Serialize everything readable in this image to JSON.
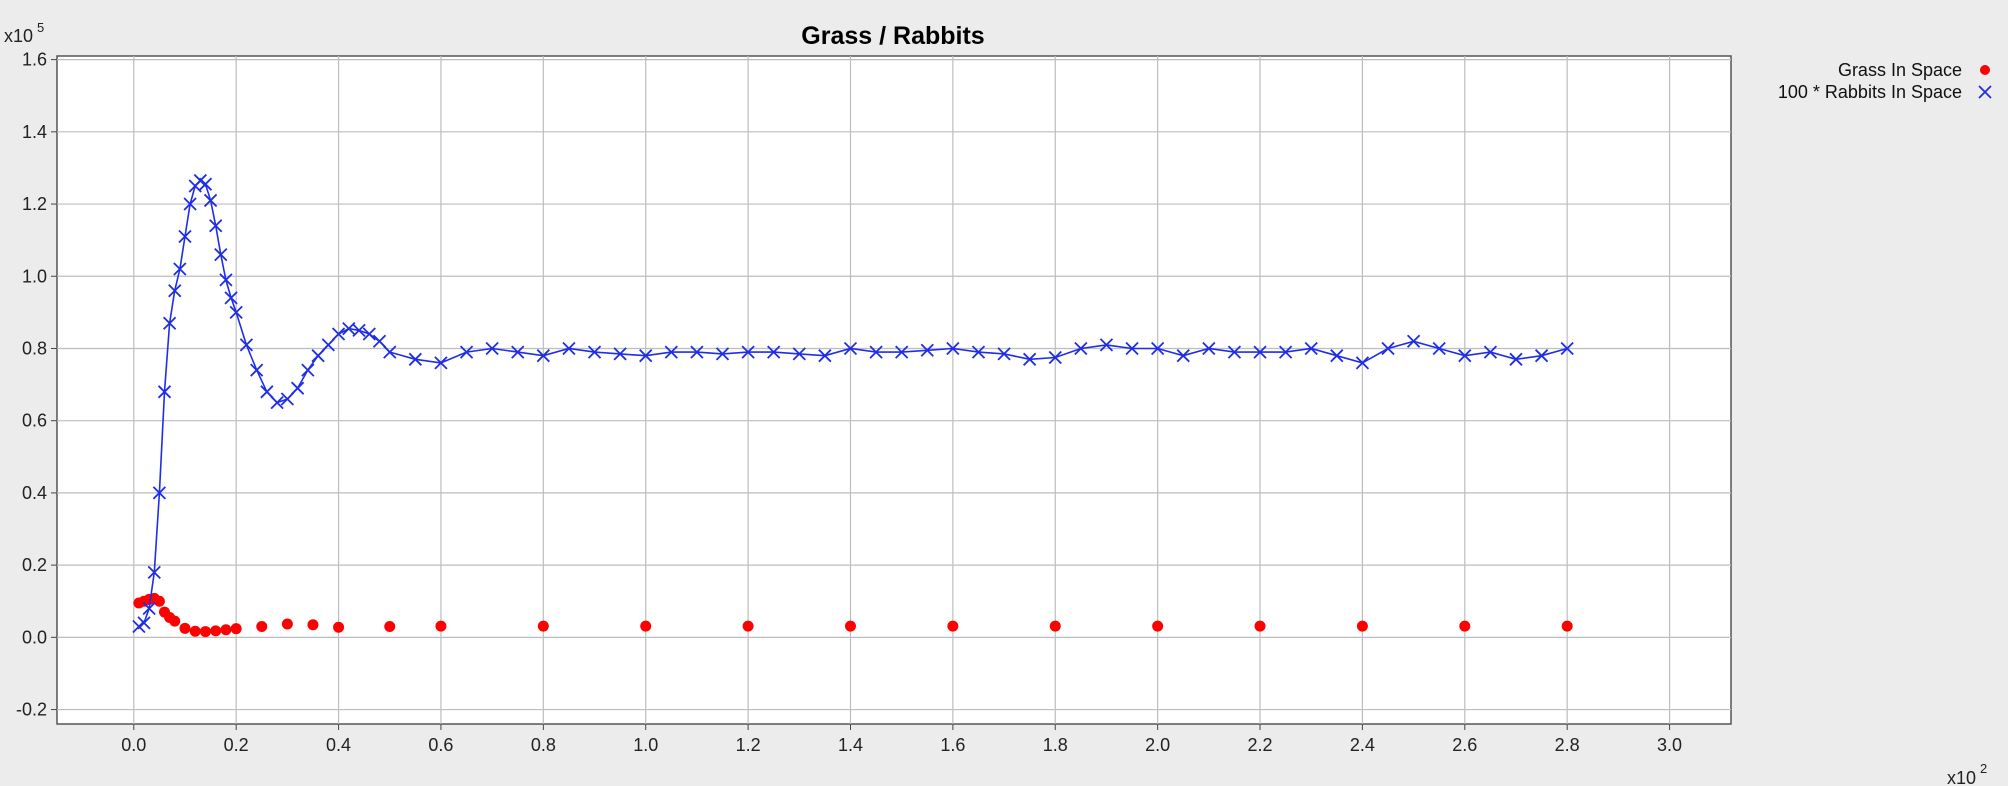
{
  "chart_data": {
    "type": "scatter",
    "title": "Grass / Rabbits",
    "xlabel": "",
    "ylabel": "",
    "x_multiplier": "x10",
    "x_multiplier_exp": "2",
    "y_multiplier": "x10",
    "y_multiplier_exp": "5",
    "xlim": [
      -0.15,
      3.12
    ],
    "ylim": [
      -0.24,
      1.61
    ],
    "x_ticks": [
      "0.0",
      "0.2",
      "0.4",
      "0.6",
      "0.8",
      "1.0",
      "1.2",
      "1.4",
      "1.6",
      "1.8",
      "2.0",
      "2.2",
      "2.4",
      "2.6",
      "2.8",
      "3.0"
    ],
    "y_ticks": [
      "-0.2",
      "0.0",
      "0.2",
      "0.4",
      "0.6",
      "0.8",
      "1.0",
      "1.2",
      "1.4",
      "1.6"
    ],
    "grid": true,
    "legend_position": "top-right outside",
    "series": [
      {
        "name": "Grass In Space",
        "color": "#ff0000",
        "marker": "circle",
        "line": false,
        "x": [
          0.01,
          0.02,
          0.03,
          0.04,
          0.05,
          0.06,
          0.07,
          0.08,
          0.1,
          0.12,
          0.14,
          0.16,
          0.18,
          0.2,
          0.25,
          0.3,
          0.35,
          0.4,
          0.5,
          0.6,
          0.8,
          1.0,
          1.2,
          1.4,
          1.6,
          1.8,
          2.0,
          2.2,
          2.4,
          2.6,
          2.8
        ],
        "y": [
          0.095,
          0.1,
          0.105,
          0.108,
          0.1,
          0.07,
          0.055,
          0.045,
          0.025,
          0.017,
          0.016,
          0.018,
          0.021,
          0.024,
          0.03,
          0.037,
          0.035,
          0.028,
          0.03,
          0.031,
          0.031,
          0.031,
          0.031,
          0.031,
          0.031,
          0.031,
          0.031,
          0.031,
          0.031,
          0.031,
          0.031
        ]
      },
      {
        "name": "100 * Rabbits In Space",
        "color": "#1f2ee6",
        "marker": "x",
        "line": true,
        "x": [
          0.01,
          0.02,
          0.03,
          0.04,
          0.05,
          0.06,
          0.07,
          0.08,
          0.09,
          0.1,
          0.11,
          0.12,
          0.13,
          0.14,
          0.15,
          0.16,
          0.17,
          0.18,
          0.19,
          0.2,
          0.22,
          0.24,
          0.26,
          0.28,
          0.3,
          0.32,
          0.34,
          0.36,
          0.38,
          0.4,
          0.42,
          0.44,
          0.46,
          0.48,
          0.5,
          0.55,
          0.6,
          0.65,
          0.7,
          0.75,
          0.8,
          0.85,
          0.9,
          0.95,
          1.0,
          1.05,
          1.1,
          1.15,
          1.2,
          1.25,
          1.3,
          1.35,
          1.4,
          1.45,
          1.5,
          1.55,
          1.6,
          1.65,
          1.7,
          1.75,
          1.8,
          1.85,
          1.9,
          1.95,
          2.0,
          2.05,
          2.1,
          2.15,
          2.2,
          2.25,
          2.3,
          2.35,
          2.4,
          2.45,
          2.5,
          2.55,
          2.6,
          2.65,
          2.7,
          2.75,
          2.8
        ],
        "y": [
          0.03,
          0.04,
          0.08,
          0.18,
          0.4,
          0.68,
          0.87,
          0.96,
          1.02,
          1.11,
          1.2,
          1.25,
          1.265,
          1.255,
          1.21,
          1.14,
          1.06,
          0.99,
          0.94,
          0.9,
          0.81,
          0.74,
          0.68,
          0.65,
          0.66,
          0.69,
          0.74,
          0.78,
          0.81,
          0.84,
          0.855,
          0.85,
          0.84,
          0.82,
          0.79,
          0.77,
          0.76,
          0.79,
          0.8,
          0.79,
          0.78,
          0.8,
          0.79,
          0.785,
          0.78,
          0.79,
          0.79,
          0.785,
          0.79,
          0.79,
          0.785,
          0.78,
          0.8,
          0.79,
          0.79,
          0.795,
          0.8,
          0.79,
          0.785,
          0.77,
          0.775,
          0.8,
          0.81,
          0.8,
          0.8,
          0.78,
          0.8,
          0.79,
          0.79,
          0.79,
          0.8,
          0.78,
          0.76,
          0.8,
          0.82,
          0.8,
          0.78,
          0.79,
          0.77,
          0.78,
          0.8
        ]
      }
    ]
  }
}
